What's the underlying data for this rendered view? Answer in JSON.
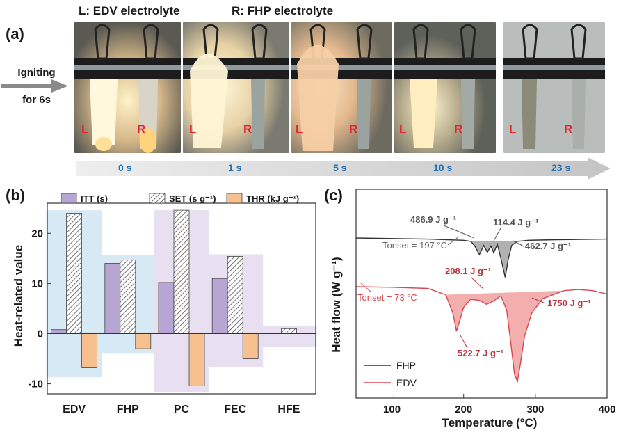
{
  "header": {
    "left_label": "L: EDV electrolyte",
    "right_label": "R: FHP electrolyte",
    "panel_a": "(a)",
    "panel_b": "(b)",
    "panel_c": "(c)",
    "igniting_line1": "Igniting",
    "igniting_line2": "for 6s"
  },
  "photos": {
    "timeline": [
      "0 s",
      "1 s",
      "5 s",
      "10 s",
      "23 s"
    ],
    "left_tag": "L",
    "right_tag": "R"
  },
  "colors": {
    "itt": "#b7a6d4",
    "set_hatch": "#555555",
    "thr": "#f6c08f",
    "band_blue": "#d8e9f6",
    "band_purple": "#e8e0f0",
    "fhp_line": "#333333",
    "fhp_fill": "#a9a9a9",
    "edv_line": "#d9474e",
    "edv_fill": "#f2a6a4",
    "time_text": "#1e6fb5",
    "tag_text": "#e0272e"
  },
  "chart_data": [
    {
      "type": "bar",
      "panel": "b",
      "categories": [
        "EDV",
        "FHP",
        "PC",
        "FEC",
        "HFE"
      ],
      "ylabel": "Heat-related value",
      "ylim": [
        -12,
        26
      ],
      "yticks": [
        -10,
        0,
        10,
        20
      ],
      "ytick_labels": [
        "-10",
        "0",
        "10",
        "20"
      ],
      "series": [
        {
          "name": "ITT (s)",
          "values": [
            0.8,
            14,
            10.2,
            11,
            0
          ]
        },
        {
          "name": "SET (s g⁻¹)",
          "values": [
            24,
            14.7,
            24.6,
            15.4,
            1
          ]
        },
        {
          "name": "THR (kJ g⁻¹)",
          "values": [
            -6.8,
            -3,
            -10.4,
            -5,
            0
          ]
        }
      ],
      "bands": [
        {
          "category": "EDV",
          "top": 24.6,
          "bottom": -8.7,
          "color": "blue"
        },
        {
          "category": "FHP",
          "top": 15.7,
          "bottom": -4,
          "color": "blue"
        },
        {
          "category": "PC",
          "top": 24.6,
          "bottom": -11.7,
          "color": "purple"
        },
        {
          "category": "FEC",
          "top": 15.8,
          "bottom": -6.7,
          "color": "purple"
        },
        {
          "category": "HFE",
          "top": 1.6,
          "bottom": -2.6,
          "color": "purple"
        }
      ],
      "legend": "top"
    },
    {
      "type": "line",
      "panel": "c",
      "xlabel": "Temperature (°C)",
      "ylabel": "Heat flow (W g⁻¹)",
      "xlim": [
        50,
        400
      ],
      "xticks": [
        100,
        200,
        300,
        400
      ],
      "xtick_labels": [
        "100",
        "200",
        "300",
        "400"
      ],
      "legend": "bottom-left",
      "series": [
        {
          "name": "FHP",
          "baseline": 0,
          "x": [
            50,
            150,
            200,
            210,
            215,
            222,
            228,
            233,
            238,
            242,
            247,
            252,
            258,
            262,
            267,
            275,
            290,
            330,
            400
          ],
          "y": [
            0,
            -0.2,
            -0.4,
            -0.6,
            -1.3,
            -2.9,
            -1.3,
            -2.5,
            -1.4,
            -2.6,
            -1.1,
            -3.6,
            -6.9,
            -3.8,
            -1.3,
            -0.6,
            -0.4,
            -0.3,
            -0.2
          ]
        },
        {
          "name": "EDV",
          "baseline": 0,
          "x": [
            50,
            100,
            150,
            175,
            185,
            190,
            194,
            200,
            210,
            222,
            232,
            242,
            252,
            260,
            266,
            271,
            275,
            279,
            285,
            295,
            310,
            340,
            360,
            380,
            400
          ],
          "y": [
            0,
            -0.1,
            -0.3,
            -1.4,
            -4.6,
            -7.8,
            -6.2,
            -3.6,
            -2.2,
            -2.4,
            -3.1,
            -2.5,
            -1.6,
            -4.1,
            -10.2,
            -15.4,
            -16.6,
            -13.6,
            -8.6,
            -4.6,
            -2.1,
            -0.7,
            -0.5,
            -0.7,
            -1.3
          ]
        }
      ],
      "annotations": [
        {
          "series": "FHP",
          "text": "486.9 J g⁻¹"
        },
        {
          "series": "FHP",
          "text": "114.4 J g⁻¹"
        },
        {
          "series": "FHP",
          "text": "462.7 J g⁻¹"
        },
        {
          "series": "FHP",
          "text": "Tonset = 197 °C"
        },
        {
          "series": "EDV",
          "text": "208.1 J g⁻¹"
        },
        {
          "series": "EDV",
          "text": "522.7 J g⁻¹"
        },
        {
          "series": "EDV",
          "text": "1750 J g⁻¹"
        },
        {
          "series": "EDV",
          "text": "Tonset = 73 °C"
        }
      ]
    }
  ]
}
